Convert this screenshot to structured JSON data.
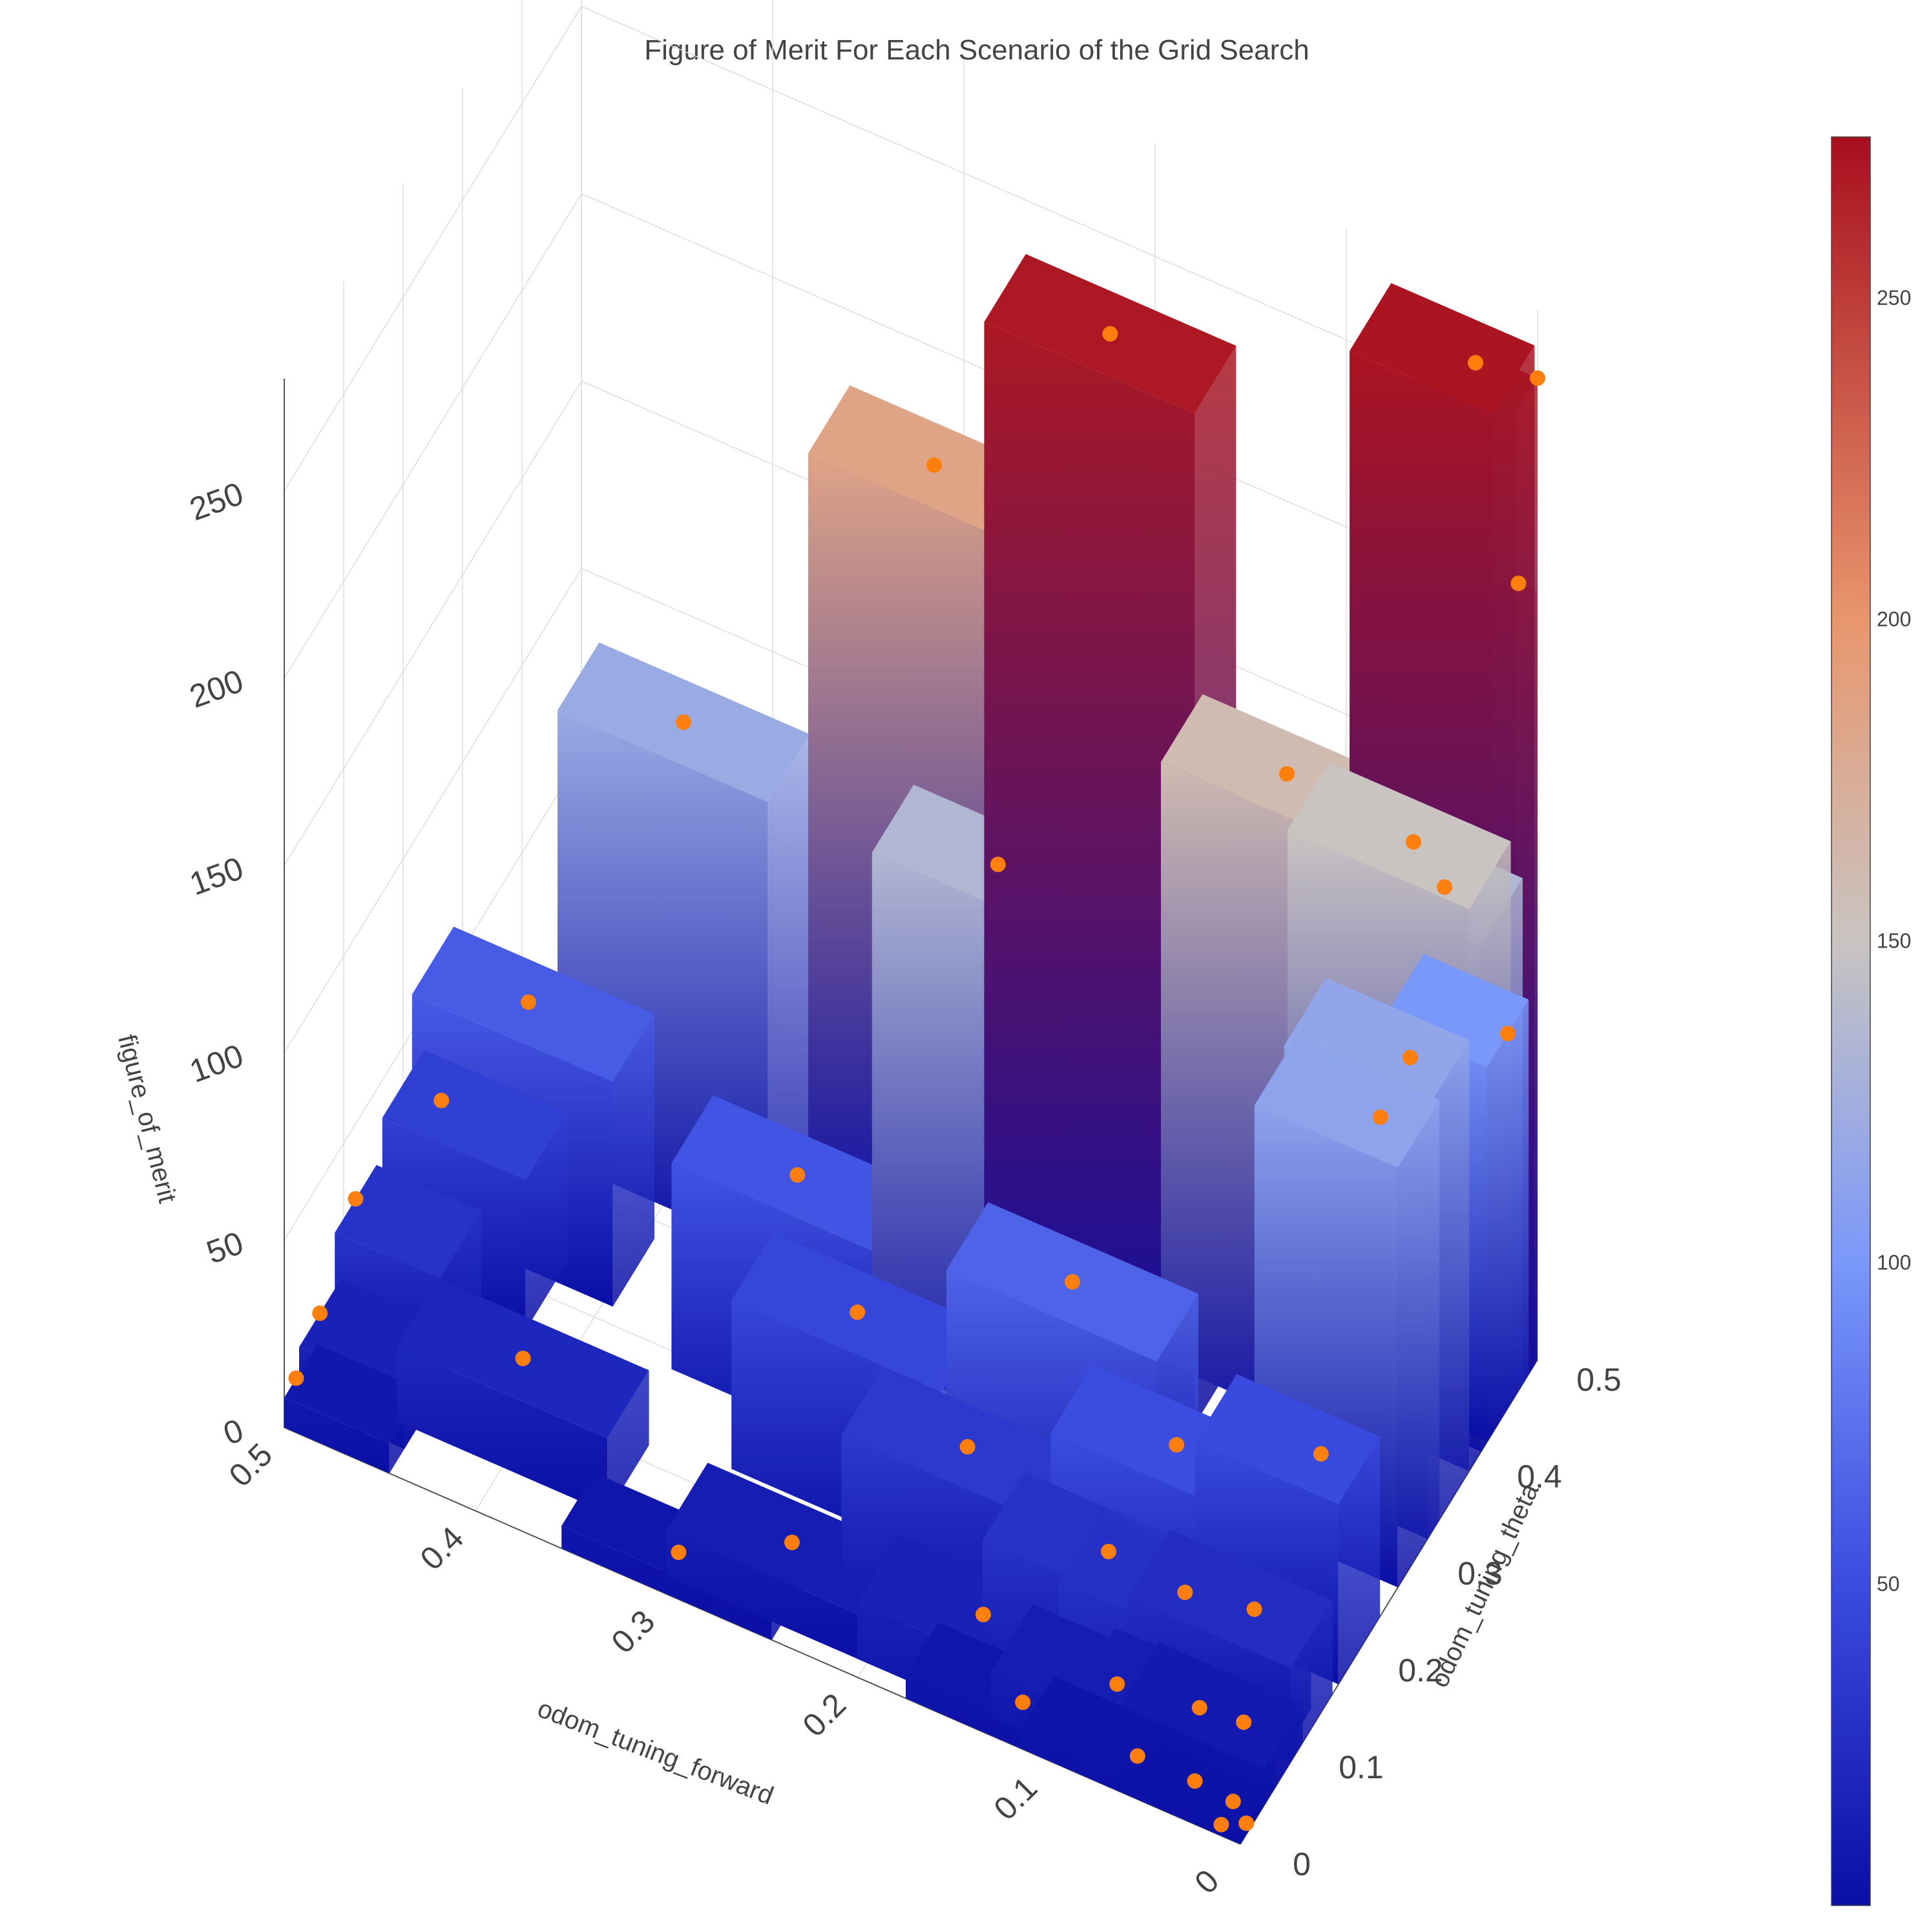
{
  "chart_data": {
    "type": "3d-bar",
    "title": "Figure of Merit For Each Scenario of the Grid Search",
    "x_axis": {
      "label": "odom_tuning_forward",
      "ticks": [
        "0",
        "0.1",
        "0.2",
        "0.3",
        "0.4",
        "0.5"
      ],
      "range": [
        0,
        0.5
      ]
    },
    "y_axis": {
      "label": "odom_tuning_theta",
      "ticks": [
        "0",
        "0.1",
        "0.2",
        "0.3",
        "0.4",
        "0.5"
      ],
      "range": [
        0,
        0.5
      ]
    },
    "z_axis": {
      "label": "figure_of_merit",
      "ticks": [
        "0",
        "50",
        "100",
        "150",
        "200",
        "250"
      ],
      "range": [
        0,
        280
      ]
    },
    "colorscale": {
      "type": "coolwarm",
      "min": 0,
      "max": 275,
      "ticks": [
        "50",
        "100",
        "150",
        "200",
        "250"
      ],
      "stops": [
        {
          "v": 0,
          "color": "#0a0ea5"
        },
        {
          "v": 50,
          "color": "#3b4ce0"
        },
        {
          "v": 100,
          "color": "#7a98fa"
        },
        {
          "v": 150,
          "color": "#c9c4c1"
        },
        {
          "v": 200,
          "color": "#e8966d"
        },
        {
          "v": 275,
          "color": "#a80f1e"
        }
      ]
    },
    "marker_color": "#ff7f0e",
    "grid": true,
    "bars": [
      {
        "x": 0.18,
        "y": 0.36,
        "z": 270
      },
      {
        "x": 0.02,
        "y": 0.46,
        "z": 272
      },
      {
        "x": 0.0,
        "y": 0.5,
        "z": 262
      },
      {
        "x": 0.01,
        "y": 0.5,
        "z": 205
      },
      {
        "x": 0.3,
        "y": 0.45,
        "z": 185
      },
      {
        "x": 0.1,
        "y": 0.4,
        "z": 160
      },
      {
        "x": 0.04,
        "y": 0.42,
        "z": 150
      },
      {
        "x": 0.03,
        "y": 0.44,
        "z": 135
      },
      {
        "x": 0.22,
        "y": 0.3,
        "z": 135
      },
      {
        "x": 0.4,
        "y": 0.35,
        "z": 120
      },
      {
        "x": 0.02,
        "y": 0.35,
        "z": 115
      },
      {
        "x": 0.02,
        "y": 0.3,
        "z": 112
      },
      {
        "x": 0.0,
        "y": 0.45,
        "z": 100
      },
      {
        "x": 0.15,
        "y": 0.2,
        "z": 65
      },
      {
        "x": 0.45,
        "y": 0.25,
        "z": 60
      },
      {
        "x": 0.3,
        "y": 0.22,
        "z": 55
      },
      {
        "x": 0.08,
        "y": 0.15,
        "z": 50
      },
      {
        "x": 0.02,
        "y": 0.2,
        "z": 48
      },
      {
        "x": 0.25,
        "y": 0.16,
        "z": 45
      },
      {
        "x": 0.48,
        "y": 0.2,
        "z": 40
      },
      {
        "x": 0.5,
        "y": 0.12,
        "z": 30
      },
      {
        "x": 0.18,
        "y": 0.12,
        "z": 35
      },
      {
        "x": 0.1,
        "y": 0.1,
        "z": 30
      },
      {
        "x": 0.06,
        "y": 0.1,
        "z": 28
      },
      {
        "x": 0.03,
        "y": 0.12,
        "z": 25
      },
      {
        "x": 0.4,
        "y": 0.08,
        "z": 20
      },
      {
        "x": 0.5,
        "y": 0.06,
        "z": 15
      },
      {
        "x": 0.25,
        "y": 0.05,
        "z": 12
      },
      {
        "x": 0.15,
        "y": 0.05,
        "z": 15
      },
      {
        "x": 0.08,
        "y": 0.05,
        "z": 12
      },
      {
        "x": 0.04,
        "y": 0.06,
        "z": 12
      },
      {
        "x": 0.02,
        "y": 0.07,
        "z": 10
      },
      {
        "x": 0.5,
        "y": 0.02,
        "z": 8
      },
      {
        "x": 0.3,
        "y": 0.02,
        "z": 6
      },
      {
        "x": 0.12,
        "y": 0.02,
        "z": 6
      },
      {
        "x": 0.06,
        "y": 0.02,
        "z": 5
      },
      {
        "x": 0.03,
        "y": 0.02,
        "z": 5
      },
      {
        "x": 0.01,
        "y": 0.02,
        "z": 4
      },
      {
        "x": 0.01,
        "y": 0.0,
        "z": 3
      },
      {
        "x": 0.0,
        "y": 0.01,
        "z": 3
      }
    ]
  }
}
